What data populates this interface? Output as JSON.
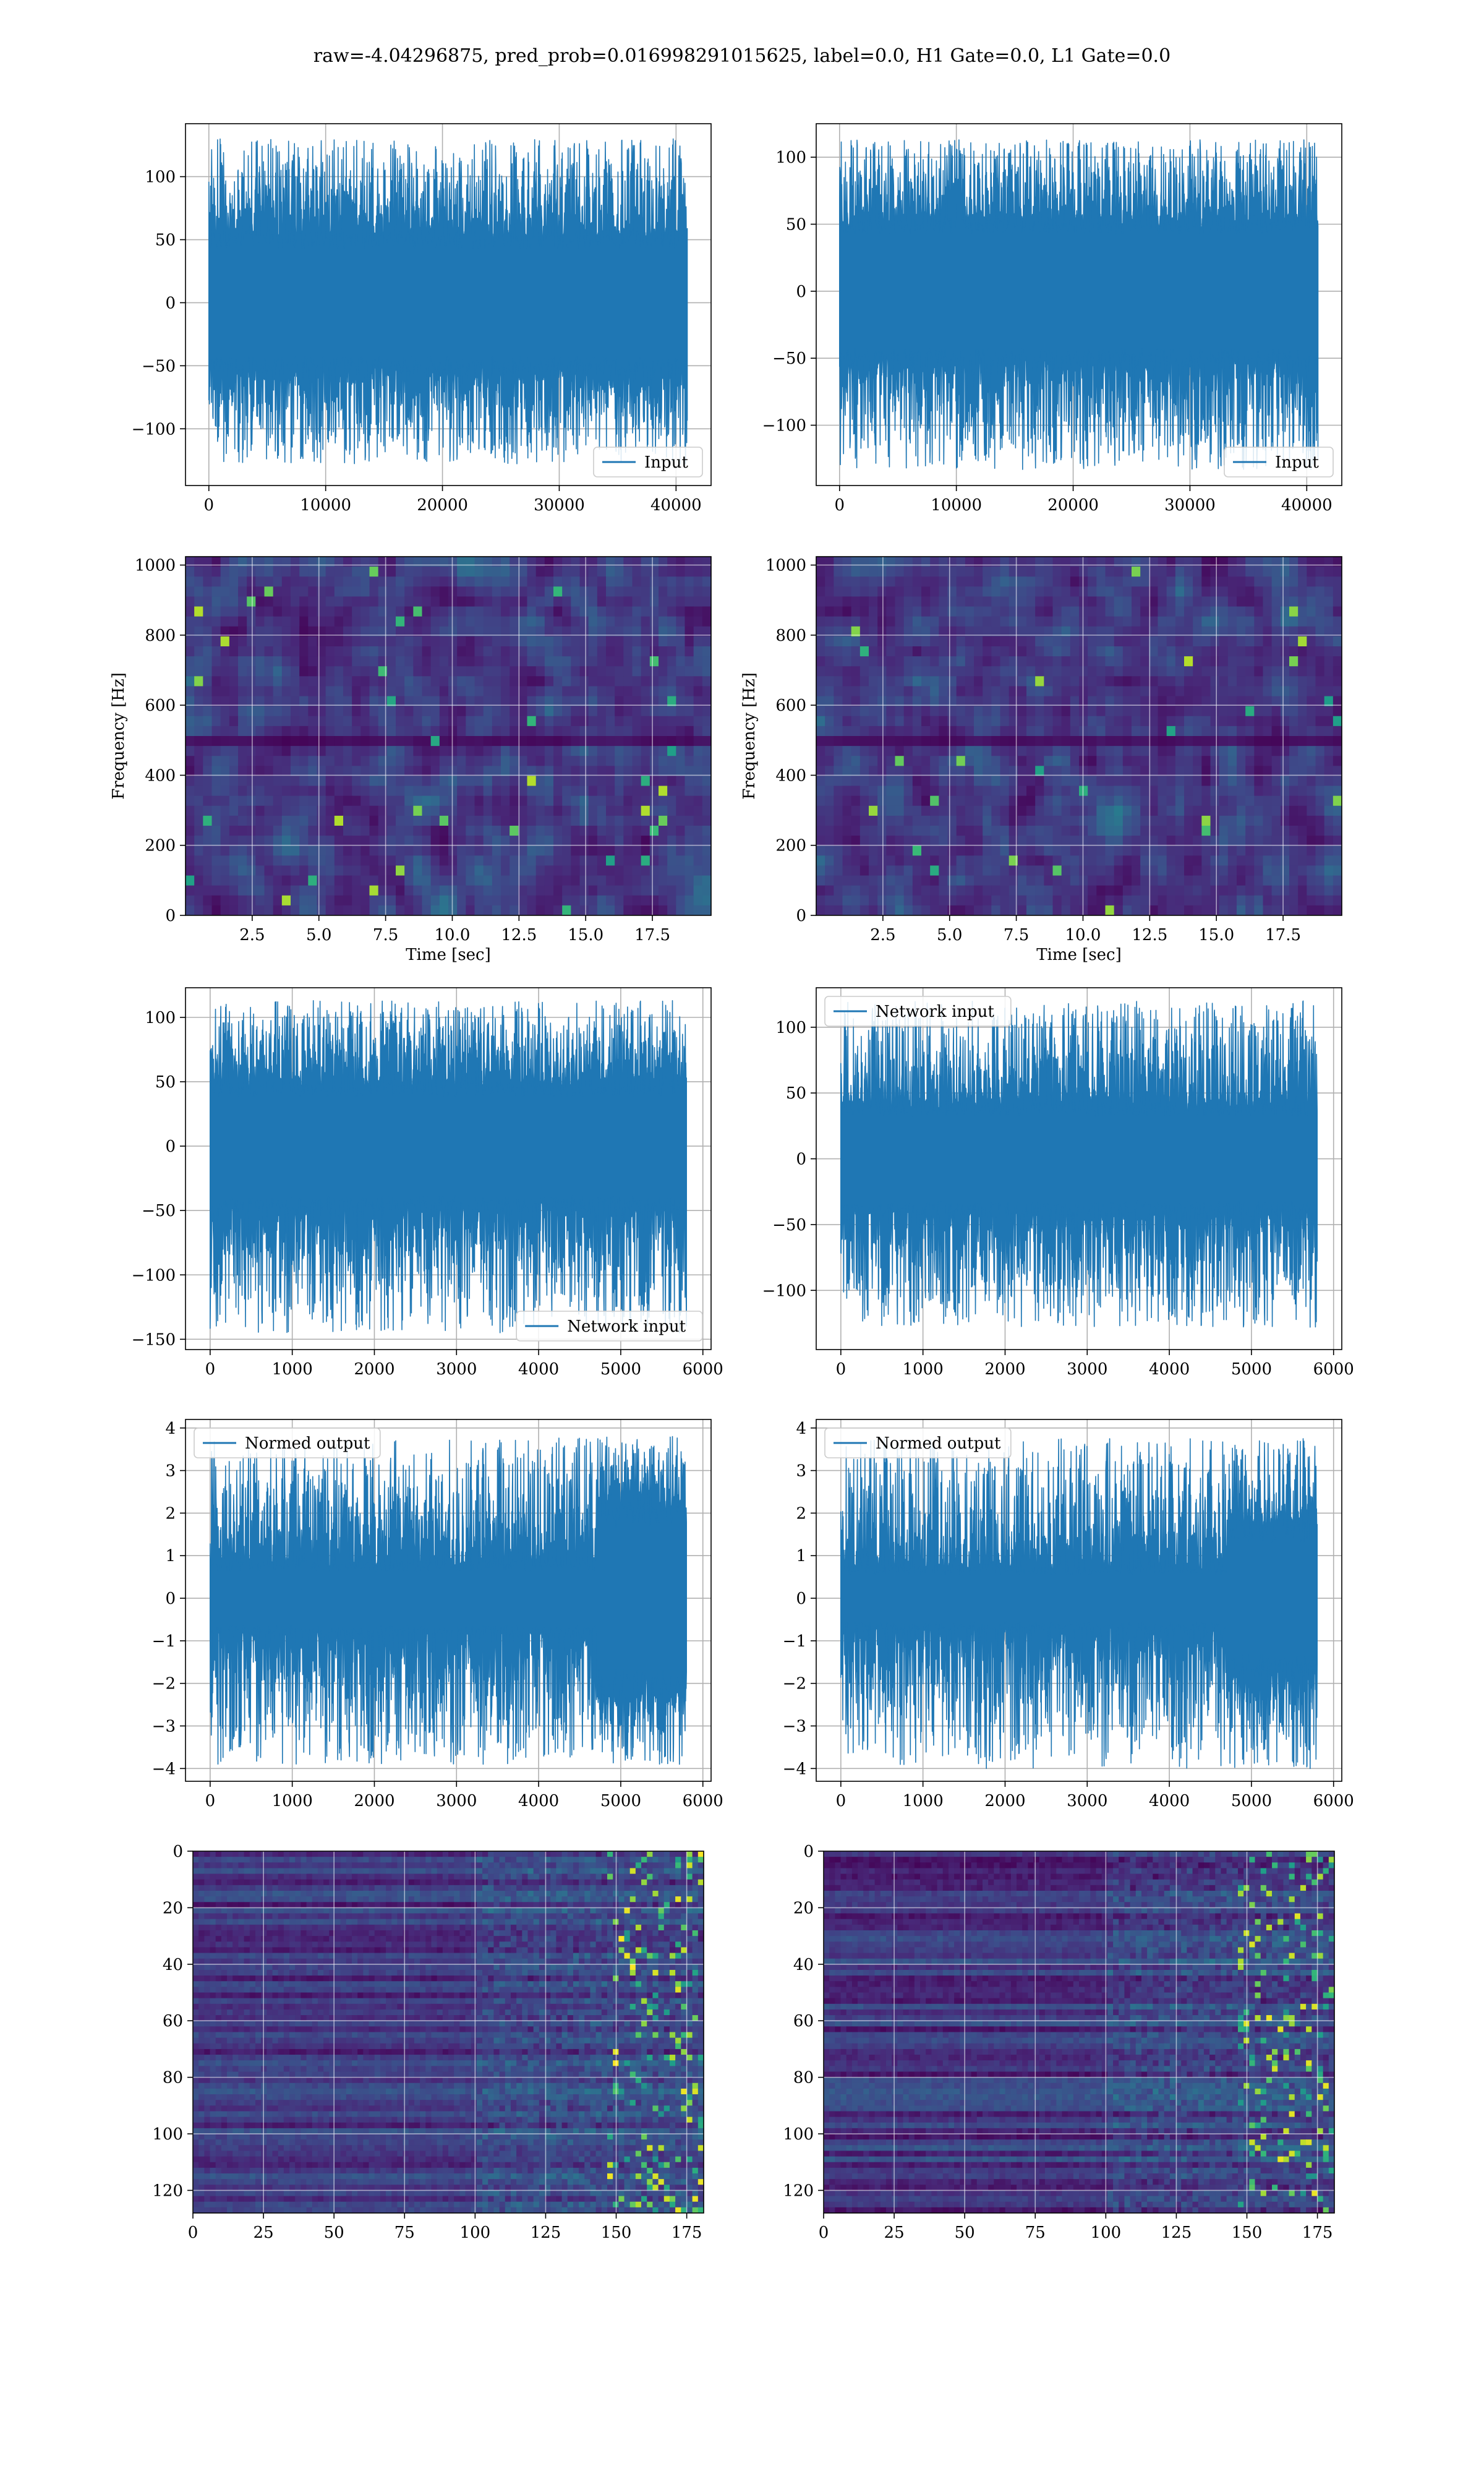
{
  "figure": {
    "title": "raw=-4.04296875, pred_prob=0.016998291015625, label=0.0, H1 Gate=0.0, L1 Gate=0.0"
  },
  "colors": {
    "line": "#1f77b4",
    "grid": "#b0b0b0",
    "viridis": [
      "#440154",
      "#482878",
      "#3e4989",
      "#31688e",
      "#26828e",
      "#1f9e89",
      "#35b779",
      "#6ece58",
      "#b5de2b",
      "#fde725"
    ]
  },
  "chart_data": [
    {
      "id": "input-h1",
      "type": "line",
      "style": "dense-noise",
      "series": [
        {
          "name": "Input"
        }
      ],
      "legend_loc": "lower-right",
      "xlim": [
        -2000,
        43000
      ],
      "ylim": [
        -145,
        142
      ],
      "xticks": [
        0,
        10000,
        20000,
        30000,
        40000
      ],
      "yticks": [
        -100,
        -50,
        0,
        50,
        100
      ],
      "signal": {
        "n_samples": 40960,
        "body_amplitude": 50,
        "peak_max": 130,
        "peak_min": -128
      }
    },
    {
      "id": "input-l1",
      "type": "line",
      "style": "dense-noise",
      "series": [
        {
          "name": "Input"
        }
      ],
      "legend_loc": "lower-right",
      "xlim": [
        -2000,
        43000
      ],
      "ylim": [
        -145,
        125
      ],
      "xticks": [
        0,
        10000,
        20000,
        30000,
        40000
      ],
      "yticks": [
        -100,
        -50,
        0,
        50,
        100
      ],
      "signal": {
        "n_samples": 40960,
        "body_amplitude": 50,
        "peak_max": 113,
        "peak_min": -133
      }
    },
    {
      "id": "spectrogram-h1",
      "type": "heatmap",
      "style": "spectrogram",
      "xlabel": "Time [sec]",
      "ylabel": "Frequency [Hz]",
      "xlim": [
        0,
        19.7
      ],
      "ylim": [
        0,
        1024
      ],
      "xticks": [
        2.5,
        5.0,
        7.5,
        10.0,
        12.5,
        15.0,
        17.5
      ],
      "xtick_labels": [
        "2.5",
        "5.0",
        "7.5",
        "10.0",
        "12.5",
        "15.0",
        "17.5"
      ],
      "yticks": [
        0,
        200,
        400,
        600,
        800,
        1000
      ]
    },
    {
      "id": "spectrogram-l1",
      "type": "heatmap",
      "style": "spectrogram",
      "xlabel": "Time [sec]",
      "ylabel": "Frequency [Hz]",
      "xlim": [
        0,
        19.7
      ],
      "ylim": [
        0,
        1024
      ],
      "xticks": [
        2.5,
        5.0,
        7.5,
        10.0,
        12.5,
        15.0,
        17.5
      ],
      "xtick_labels": [
        "2.5",
        "5.0",
        "7.5",
        "10.0",
        "12.5",
        "15.0",
        "17.5"
      ],
      "yticks": [
        0,
        200,
        400,
        600,
        800,
        1000
      ]
    },
    {
      "id": "network-input-h1",
      "type": "line",
      "style": "dense-noise",
      "series": [
        {
          "name": "Network input"
        }
      ],
      "legend_loc": "lower-right",
      "xlim": [
        -300,
        6100
      ],
      "ylim": [
        -158,
        123
      ],
      "xticks": [
        0,
        1000,
        2000,
        3000,
        4000,
        5000,
        6000
      ],
      "yticks": [
        -150,
        -100,
        -50,
        0,
        50,
        100
      ],
      "signal": {
        "n_samples": 5800,
        "body_amplitude": 45,
        "peak_max": 113,
        "peak_min": -145
      }
    },
    {
      "id": "network-input-l1",
      "type": "line",
      "style": "dense-noise",
      "series": [
        {
          "name": "Network input"
        }
      ],
      "legend_loc": "upper-left",
      "xlim": [
        -300,
        6100
      ],
      "ylim": [
        -145,
        130
      ],
      "xticks": [
        0,
        1000,
        2000,
        3000,
        4000,
        5000,
        6000
      ],
      "yticks": [
        -100,
        -50,
        0,
        50,
        100
      ],
      "signal": {
        "n_samples": 5800,
        "body_amplitude": 38,
        "peak_max": 120,
        "peak_min": -128
      }
    },
    {
      "id": "normed-output-h1",
      "type": "line",
      "style": "dense-noise",
      "series": [
        {
          "name": "Normed output"
        }
      ],
      "legend_loc": "upper-left",
      "xlim": [
        -300,
        6100
      ],
      "ylim": [
        -4.3,
        4.2
      ],
      "xticks": [
        0,
        1000,
        2000,
        3000,
        4000,
        5000,
        6000
      ],
      "yticks": [
        -4,
        -3,
        -2,
        -1,
        0,
        1,
        2,
        3,
        4
      ],
      "signal": {
        "n_samples": 5800,
        "body_amplitude": 0.75,
        "peak_max": 3.8,
        "peak_min": -3.9,
        "burst_start": 4700,
        "burst_amplitude": 1.6
      }
    },
    {
      "id": "normed-output-l1",
      "type": "line",
      "style": "dense-noise",
      "series": [
        {
          "name": "Normed output"
        }
      ],
      "legend_loc": "upper-left",
      "xlim": [
        -300,
        6100
      ],
      "ylim": [
        -4.3,
        4.2
      ],
      "xticks": [
        0,
        1000,
        2000,
        3000,
        4000,
        5000,
        6000
      ],
      "yticks": [
        -4,
        -3,
        -2,
        -1,
        0,
        1,
        2,
        3,
        4
      ],
      "signal": {
        "n_samples": 5800,
        "body_amplitude": 0.65,
        "peak_max": 3.75,
        "peak_min": -4.0,
        "burst_start": 4700,
        "burst_amplitude": 1.2
      }
    },
    {
      "id": "features-h1",
      "type": "heatmap",
      "style": "feature-map",
      "xlim": [
        0,
        181
      ],
      "ylim": [
        128,
        0
      ],
      "xticks": [
        0,
        25,
        50,
        75,
        100,
        125,
        150,
        175
      ],
      "yticks": [
        0,
        20,
        40,
        60,
        80,
        100,
        120
      ]
    },
    {
      "id": "features-l1",
      "type": "heatmap",
      "style": "feature-map",
      "xlim": [
        0,
        181
      ],
      "ylim": [
        128,
        0
      ],
      "xticks": [
        0,
        25,
        50,
        75,
        100,
        125,
        150,
        175
      ],
      "yticks": [
        0,
        20,
        40,
        60,
        80,
        100,
        120
      ]
    }
  ]
}
